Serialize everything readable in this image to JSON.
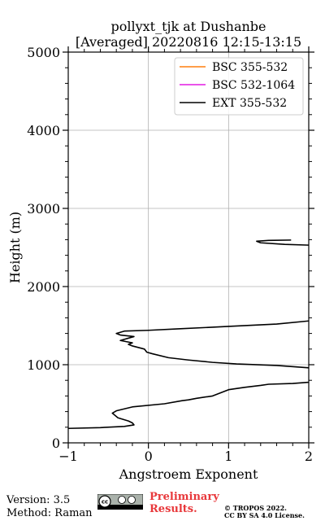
{
  "chart_data": {
    "type": "line",
    "title": "pollyxt_tjk at Dushanbe",
    "subtitle": "[Averaged] 20220816 12:15-13:15",
    "xlabel": "Angstroem Exponent",
    "ylabel": "Height (m)",
    "xlim": [
      -1,
      2
    ],
    "ylim": [
      0,
      5000
    ],
    "xticks": [
      -1,
      0,
      1,
      2
    ],
    "xtick_labels": [
      "−1",
      "0",
      "1",
      "2"
    ],
    "yticks": [
      0,
      1000,
      2000,
      3000,
      4000,
      5000
    ],
    "ytick_labels": [
      "0",
      "1000",
      "2000",
      "3000",
      "4000",
      "5000"
    ],
    "grid": true,
    "legend_position": "top-right",
    "series": [
      {
        "name": "BSC 355-532",
        "color": "#ff7f0e",
        "points": []
      },
      {
        "name": "BSC 532-1064",
        "color": "#e41ae4",
        "points": []
      },
      {
        "name": "EXT 355-532",
        "color": "#000000",
        "points": [
          [
            -1.0,
            185
          ],
          [
            -0.6,
            195
          ],
          [
            -0.3,
            210
          ],
          [
            -0.18,
            230
          ],
          [
            -0.2,
            255
          ],
          [
            -0.25,
            280
          ],
          [
            -0.38,
            320
          ],
          [
            -0.45,
            380
          ],
          [
            -0.4,
            410
          ],
          [
            -0.2,
            460
          ],
          [
            0.2,
            500
          ],
          [
            0.42,
            540
          ],
          [
            0.5,
            550
          ],
          [
            0.6,
            570
          ],
          [
            0.8,
            600
          ],
          [
            1.0,
            680
          ],
          [
            1.2,
            710
          ],
          [
            1.4,
            735
          ],
          [
            1.5,
            750
          ],
          [
            1.8,
            760
          ],
          [
            2.0,
            775
          ],
          [
            2.05,
            850
          ],
          [
            2.0,
            960
          ],
          [
            1.6,
            990
          ],
          [
            1.1,
            1010
          ],
          [
            0.8,
            1030
          ],
          [
            0.5,
            1060
          ],
          [
            0.25,
            1090
          ],
          [
            0.05,
            1140
          ],
          [
            -0.02,
            1160
          ],
          [
            -0.05,
            1200
          ],
          [
            -0.2,
            1240
          ],
          [
            -0.25,
            1260
          ],
          [
            -0.2,
            1280
          ],
          [
            -0.35,
            1310
          ],
          [
            -0.18,
            1360
          ],
          [
            -0.35,
            1380
          ],
          [
            -0.4,
            1400
          ],
          [
            -0.3,
            1430
          ],
          [
            0.0,
            1440
          ],
          [
            0.4,
            1460
          ],
          [
            1.0,
            1490
          ],
          [
            1.6,
            1520
          ],
          [
            2.0,
            1560
          ]
        ],
        "segment2": [
          [
            2.0,
            2530
          ],
          [
            1.7,
            2540
          ],
          [
            1.4,
            2560
          ],
          [
            1.35,
            2580
          ],
          [
            1.5,
            2590
          ],
          [
            1.78,
            2595
          ]
        ]
      }
    ]
  },
  "footer": {
    "version": "Version: 3.5",
    "method": "Method: Raman",
    "preliminary_line1": "Preliminary",
    "preliminary_line2": "Results.",
    "copyright_line1": "© TROPOS 2022.",
    "copyright_line2": "CC BY SA 4.0 License."
  },
  "license_logo": "cc-by-sa-icon"
}
